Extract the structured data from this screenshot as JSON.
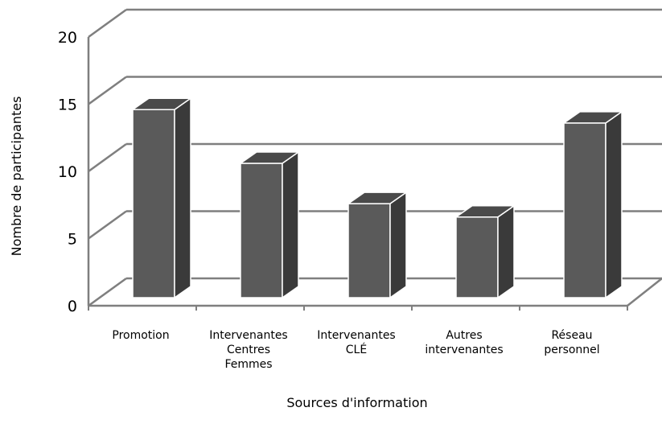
{
  "chart_data": {
    "type": "bar",
    "title": "",
    "xlabel": "Sources d'information",
    "ylabel": "Nombre de participantes",
    "ylim": [
      0,
      20
    ],
    "yticks": [
      0,
      5,
      10,
      15,
      20
    ],
    "grid": true,
    "three_d": true,
    "categories": [
      [
        "Promotion"
      ],
      [
        "Intervenantes",
        "Centres",
        "Femmes"
      ],
      [
        "Intervenantes",
        "CLÉ"
      ],
      [
        "Autres",
        "intervenantes"
      ],
      [
        "Réseau",
        "personnel"
      ]
    ],
    "values": [
      14,
      10,
      7,
      6,
      13
    ],
    "colors": {
      "bar_front": "#5a5a5a",
      "bar_side": "#3a3a3a",
      "bar_top": "#4a4a4a",
      "bar_outline": "#ffffff",
      "grid": "#7f7f7f"
    }
  }
}
